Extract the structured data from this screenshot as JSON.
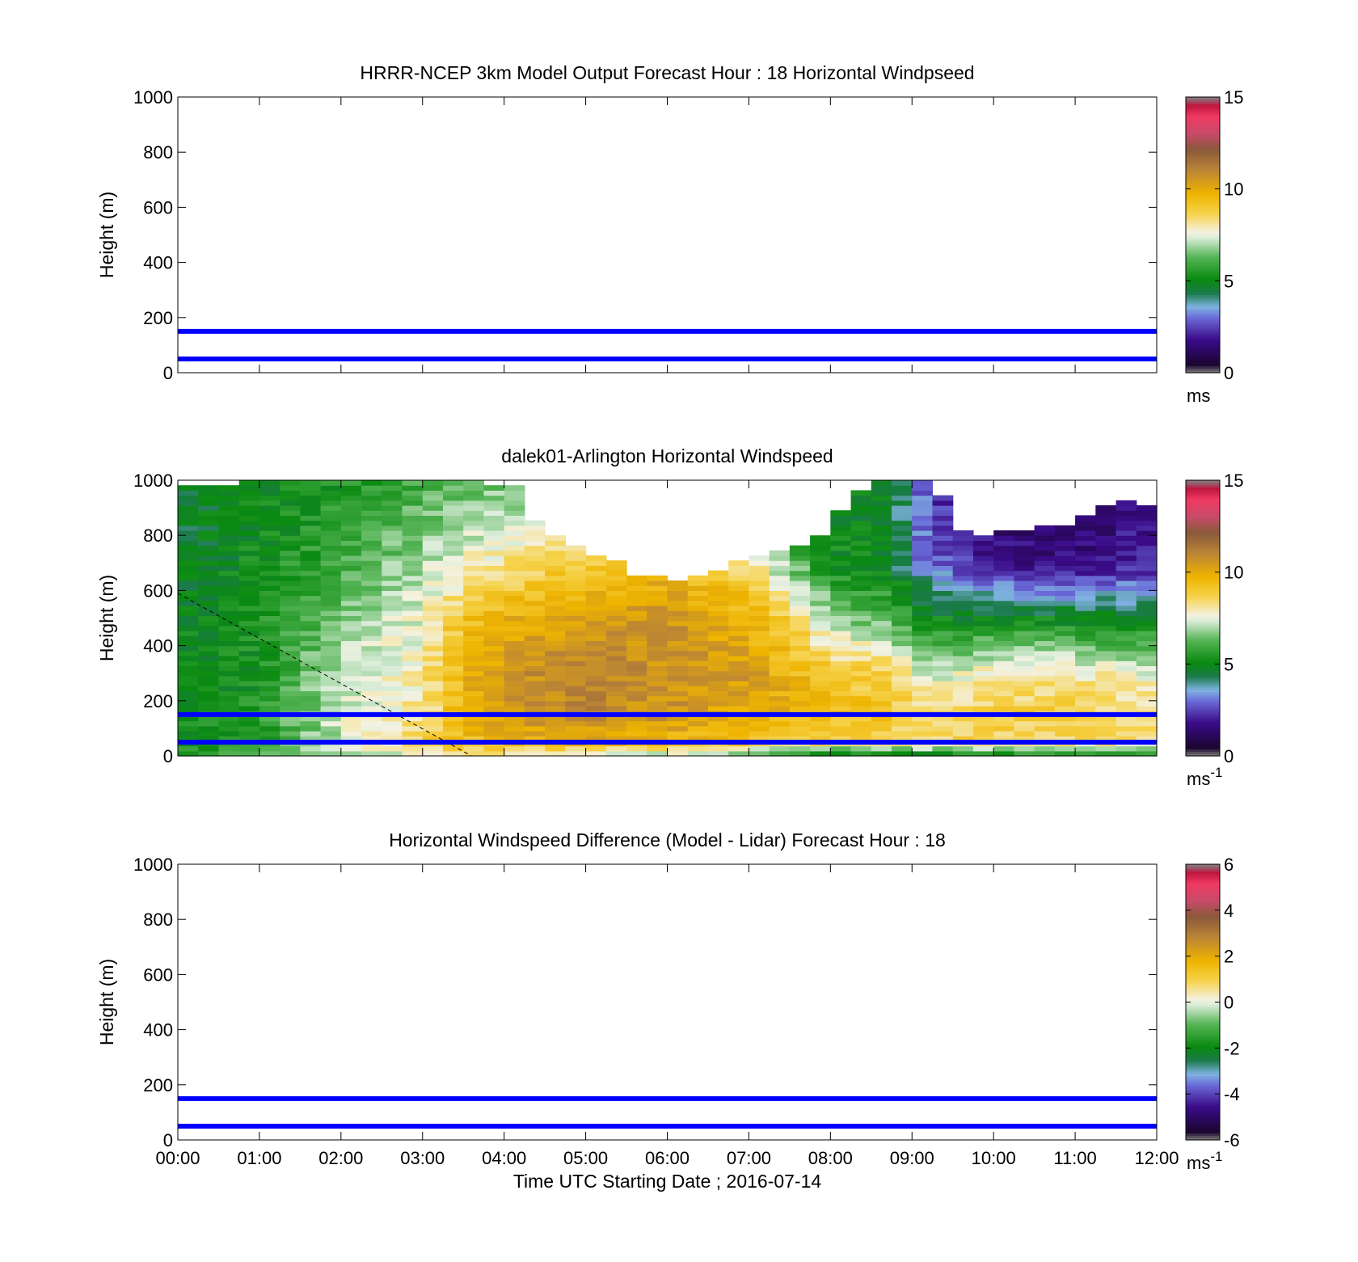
{
  "x_axis": {
    "label": "Time UTC  Starting Date ; 2016-07-14",
    "ticks": [
      "00:00",
      "01:00",
      "02:00",
      "03:00",
      "04:00",
      "05:00",
      "06:00",
      "07:00",
      "08:00",
      "09:00",
      "10:00",
      "11:00",
      "12:00"
    ],
    "range_hours": [
      0,
      12
    ]
  },
  "chart_data": [
    {
      "type": "heatmap",
      "title": "HRRR-NCEP 3km Model Output   Forecast Hour : 18 Horizontal Windpseed",
      "ylabel": "Height (m)",
      "ylim": [
        0,
        1000
      ],
      "yticks": [
        "0",
        "200",
        "400",
        "600",
        "800",
        "1000"
      ],
      "reference_lines_m": [
        50,
        150
      ],
      "reference_line_color": "#0000ff",
      "data": "no data shown",
      "colorbar": {
        "min": 0,
        "max": 15,
        "ticks": [
          "0",
          "5",
          "10",
          "15"
        ],
        "unit_base": "ms",
        "unit_exp": ""
      }
    },
    {
      "type": "heatmap",
      "title": "dalek01-Arlington  Horizontal Windspeed",
      "ylabel": "Height (m)",
      "ylim": [
        0,
        1000
      ],
      "yticks": [
        "0",
        "200",
        "400",
        "600",
        "800",
        "1000"
      ],
      "reference_lines_m": [
        50,
        150
      ],
      "reference_line_color": "#0000ff",
      "dashed_line": {
        "from": {
          "hour": 0,
          "height_m": 590
        },
        "to": {
          "hour": 3.6,
          "height_m": 0
        }
      },
      "grid_shape": {
        "time_bins": 48,
        "height_bins": 55
      },
      "valid_top_m": [
        980,
        985,
        990,
        995,
        995,
        995,
        995,
        995,
        995,
        995,
        995,
        995,
        995,
        995,
        995,
        990,
        980,
        850,
        800,
        760,
        720,
        700,
        660,
        660,
        640,
        650,
        680,
        700,
        720,
        740,
        760,
        800,
        890,
        960,
        1000,
        1000,
        1000,
        940,
        820,
        800,
        820,
        810,
        840,
        830,
        880,
        900,
        920,
        900
      ],
      "speed_profiles_ms": [
        {
          "hour": 0.0,
          "heights_m": [
            0,
            50,
            150,
            300,
            500,
            700,
            900,
            1000
          ],
          "speed": [
            6.0,
            5.0,
            5.3,
            5.0,
            5.0,
            4.6,
            4.6,
            4.8
          ]
        },
        {
          "hour": 1.0,
          "heights_m": [
            0,
            50,
            150,
            300,
            500,
            700,
            900,
            1000
          ],
          "speed": [
            6.0,
            5.6,
            5.5,
            5.2,
            5.4,
            5.2,
            5.0,
            5.0
          ]
        },
        {
          "hour": 2.0,
          "heights_m": [
            0,
            50,
            150,
            300,
            500,
            700,
            900,
            1000
          ],
          "speed": [
            7.0,
            7.2,
            7.4,
            7.2,
            6.6,
            6.0,
            5.6,
            5.4
          ]
        },
        {
          "hour": 3.0,
          "heights_m": [
            0,
            50,
            150,
            300,
            500,
            700,
            900,
            1000
          ],
          "speed": [
            7.6,
            8.6,
            8.2,
            8.0,
            7.6,
            7.0,
            6.4,
            6.0
          ]
        },
        {
          "hour": 3.5,
          "heights_m": [
            0,
            50,
            150,
            300,
            500,
            700,
            900,
            1000
          ],
          "speed": [
            8.0,
            9.4,
            9.6,
            9.8,
            9.2,
            7.6,
            6.8,
            6.4
          ]
        },
        {
          "hour": 4.0,
          "heights_m": [
            0,
            50,
            150,
            300,
            500,
            700,
            900,
            1000
          ],
          "speed": [
            7.6,
            9.8,
            10.4,
            10.6,
            9.8,
            8.2,
            7.0,
            6.6
          ]
        },
        {
          "hour": 5.0,
          "heights_m": [
            0,
            50,
            150,
            300,
            500,
            700,
            900,
            1000
          ],
          "speed": [
            7.0,
            9.8,
            11.0,
            11.0,
            10.4,
            9.0,
            7.6,
            7.0
          ]
        },
        {
          "hour": 6.0,
          "heights_m": [
            0,
            50,
            150,
            300,
            500,
            700,
            900,
            1000
          ],
          "speed": [
            7.0,
            9.6,
            10.6,
            10.6,
            10.6,
            9.4,
            7.6,
            7.0
          ]
        },
        {
          "hour": 7.0,
          "heights_m": [
            0,
            50,
            150,
            300,
            500,
            700,
            900,
            1000
          ],
          "speed": [
            6.4,
            9.2,
            10.0,
            10.4,
            9.8,
            8.4,
            7.0,
            6.4
          ]
        },
        {
          "hour": 7.6,
          "heights_m": [
            0,
            50,
            150,
            300,
            500,
            700,
            900,
            1000
          ],
          "speed": [
            5.0,
            8.6,
            9.6,
            9.6,
            8.4,
            6.2,
            5.6,
            5.4
          ]
        },
        {
          "hour": 8.0,
          "heights_m": [
            0,
            50,
            150,
            300,
            500,
            700,
            900,
            1000
          ],
          "speed": [
            4.6,
            8.6,
            9.4,
            9.0,
            6.8,
            5.2,
            5.0,
            5.0
          ]
        },
        {
          "hour": 8.7,
          "heights_m": [
            0,
            50,
            150,
            300,
            500,
            700,
            900,
            1000
          ],
          "speed": [
            4.8,
            8.6,
            9.2,
            8.8,
            6.2,
            5.0,
            5.0,
            5.0
          ]
        },
        {
          "hour": 9.2,
          "heights_m": [
            0,
            50,
            150,
            300,
            500,
            700,
            900,
            1000
          ],
          "speed": [
            4.8,
            8.6,
            8.6,
            7.2,
            5.0,
            3.0,
            2.6,
            2.6
          ]
        },
        {
          "hour": 10.0,
          "heights_m": [
            0,
            50,
            150,
            300,
            500,
            700,
            900,
            1000
          ],
          "speed": [
            5.0,
            8.6,
            8.8,
            8.0,
            5.0,
            1.8,
            1.2,
            1.4
          ]
        },
        {
          "hour": 11.0,
          "heights_m": [
            0,
            50,
            150,
            300,
            500,
            700,
            900,
            1000
          ],
          "speed": [
            5.0,
            8.4,
            8.8,
            8.0,
            5.0,
            1.6,
            1.4,
            1.6
          ]
        },
        {
          "hour": 12.0,
          "heights_m": [
            0,
            50,
            150,
            300,
            500,
            700,
            900,
            1000
          ],
          "speed": [
            5.0,
            8.0,
            8.4,
            7.6,
            4.8,
            2.0,
            2.0,
            2.2
          ]
        }
      ],
      "colorbar": {
        "min": 0,
        "max": 15,
        "ticks": [
          "0",
          "5",
          "10",
          "15"
        ],
        "unit_base": "ms",
        "unit_exp": "-1"
      }
    },
    {
      "type": "heatmap",
      "title": "Horizontal Windspeed Difference (Model - Lidar) Forecast Hour : 18",
      "ylabel": "Height (m)",
      "ylim": [
        0,
        1000
      ],
      "yticks": [
        "0",
        "200",
        "400",
        "600",
        "800",
        "1000"
      ],
      "reference_lines_m": [
        50,
        150
      ],
      "reference_line_color": "#0000ff",
      "data": "no data shown",
      "colorbar": {
        "min": -6,
        "max": 6,
        "ticks": [
          "-6",
          "-4",
          "-2",
          "0",
          "2",
          "4",
          "6"
        ],
        "unit_base": "ms",
        "unit_exp": "-1"
      }
    }
  ],
  "colormap_stops": [
    {
      "t": 0.0,
      "color": "#808080"
    },
    {
      "t": 0.03,
      "color": "#1a0530"
    },
    {
      "t": 0.12,
      "color": "#3a0a88"
    },
    {
      "t": 0.2,
      "color": "#6a6ad8"
    },
    {
      "t": 0.24,
      "color": "#7fb2e0"
    },
    {
      "t": 0.29,
      "color": "#1a7a4a"
    },
    {
      "t": 0.34,
      "color": "#0a8a10"
    },
    {
      "t": 0.42,
      "color": "#55b455"
    },
    {
      "t": 0.49,
      "color": "#d8ecd8"
    },
    {
      "t": 0.51,
      "color": "#f4f2e2"
    },
    {
      "t": 0.58,
      "color": "#f6d24a"
    },
    {
      "t": 0.65,
      "color": "#eeb400"
    },
    {
      "t": 0.74,
      "color": "#b88238"
    },
    {
      "t": 0.81,
      "color": "#8a5a3a"
    },
    {
      "t": 0.87,
      "color": "#c84a6a"
    },
    {
      "t": 0.93,
      "color": "#f03a62"
    },
    {
      "t": 0.97,
      "color": "#c01640"
    },
    {
      "t": 1.0,
      "color": "#808080"
    }
  ]
}
